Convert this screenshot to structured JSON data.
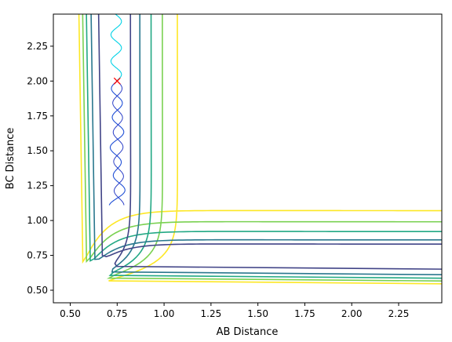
{
  "chart_data": {
    "type": "contour",
    "title": "",
    "xlabel": "AB Distance",
    "ylabel": "BC Distance",
    "xlim": [
      0.41,
      2.48
    ],
    "ylim": [
      0.41,
      2.48
    ],
    "xticks": [
      0.5,
      0.75,
      1.0,
      1.25,
      1.5,
      1.75,
      2.0,
      2.25
    ],
    "xtick_labels": [
      "0.50",
      "0.75",
      "1.00",
      "1.25",
      "1.50",
      "1.75",
      "2.00",
      "2.25"
    ],
    "yticks": [
      0.5,
      0.75,
      1.0,
      1.25,
      1.5,
      1.75,
      2.0,
      2.25
    ],
    "ytick_labels": [
      "0.50",
      "0.75",
      "1.00",
      "1.25",
      "1.50",
      "1.75",
      "2.00",
      "2.25"
    ],
    "grid": false,
    "contour_levels": [
      {
        "color": "#fde725",
        "vertical_x": 1.07,
        "horizontal_y": 1.07,
        "asymptote": 0.545
      },
      {
        "color": "#7ad151",
        "vertical_x": 0.99,
        "horizontal_y": 0.99,
        "asymptote": 0.565
      },
      {
        "color": "#22a884",
        "vertical_x": 0.93,
        "horizontal_y": 0.92,
        "asymptote": 0.585
      },
      {
        "color": "#2a788e",
        "vertical_x": 0.87,
        "horizontal_y": 0.86,
        "asymptote": 0.61
      },
      {
        "color": "#414487",
        "vertical_x": 0.82,
        "horizontal_y": 0.83,
        "asymptote": 0.65
      }
    ],
    "trajectories": [
      {
        "color": "#00d2e6",
        "start": {
          "x": 0.75,
          "y": 2.0
        },
        "direction": "up",
        "end_y": 2.48,
        "center_x": 0.745,
        "amplitude": 0.028,
        "period": 0.19
      },
      {
        "color": "#1f4fd6",
        "start": {
          "x": 0.75,
          "y": 2.0
        },
        "direction": "down",
        "end_y": 1.11,
        "center_x": 0.75,
        "amplitude": 0.03,
        "period": 0.21,
        "secondary_offset": 0.018
      }
    ],
    "start_marker": {
      "x": 0.75,
      "y": 2.0,
      "symbol": "x",
      "color": "#ff0000"
    }
  }
}
